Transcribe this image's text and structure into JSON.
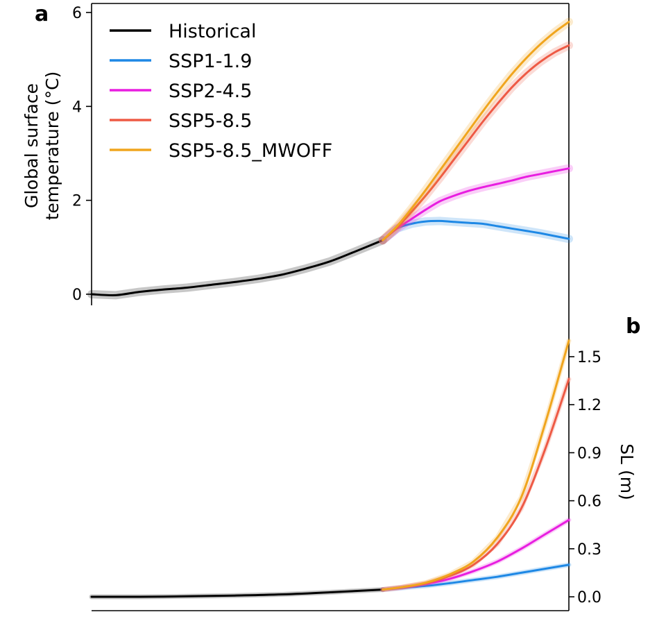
{
  "chart_data": [
    {
      "panel": "a",
      "type": "line",
      "ylabel_line1": "Global surface",
      "ylabel_line2": "temperature",
      "ylabel_unit": "(°C)",
      "ylim": [
        -0.25,
        6.15
      ],
      "yticks": [
        "0",
        "2",
        "4",
        "6"
      ],
      "ytick_values": [
        0,
        2,
        4,
        6
      ],
      "xaxis": "unlabeled time axis",
      "xlim": [
        0,
        100
      ],
      "grid": false,
      "legend_position": "top-left",
      "series": [
        {
          "name": "Historical",
          "color": "#000000",
          "x": [
            0,
            5,
            10,
            15,
            20,
            25,
            30,
            35,
            40,
            45,
            50,
            55,
            61
          ],
          "y": [
            0,
            -0.02,
            0.05,
            0.1,
            0.14,
            0.2,
            0.26,
            0.33,
            0.42,
            0.55,
            0.7,
            0.9,
            1.15
          ]
        },
        {
          "name": "SSP1-1.9",
          "color": "#1e88e5",
          "x": [
            61,
            64,
            67,
            70,
            73,
            76,
            79,
            82,
            85,
            88,
            91,
            94,
            97,
            100
          ],
          "y": [
            1.15,
            1.4,
            1.5,
            1.55,
            1.56,
            1.54,
            1.52,
            1.5,
            1.45,
            1.4,
            1.35,
            1.3,
            1.24,
            1.18
          ]
        },
        {
          "name": "SSP2-4.5",
          "color": "#e81ee0",
          "x": [
            61,
            64,
            67,
            70,
            73,
            76,
            79,
            82,
            85,
            88,
            91,
            94,
            97,
            100
          ],
          "y": [
            1.15,
            1.4,
            1.6,
            1.8,
            1.98,
            2.1,
            2.2,
            2.28,
            2.35,
            2.42,
            2.5,
            2.56,
            2.62,
            2.68
          ]
        },
        {
          "name": "SSP5-8.5",
          "color": "#ee5a45",
          "x": [
            61,
            64,
            67,
            70,
            73,
            76,
            79,
            82,
            85,
            88,
            91,
            94,
            97,
            100
          ],
          "y": [
            1.15,
            1.42,
            1.75,
            2.1,
            2.48,
            2.88,
            3.28,
            3.68,
            4.05,
            4.4,
            4.7,
            4.95,
            5.15,
            5.3
          ]
        },
        {
          "name": "SSP5-8.5_MWOFF",
          "color": "#f0a51e",
          "x": [
            61,
            64,
            67,
            70,
            73,
            76,
            79,
            82,
            85,
            88,
            91,
            94,
            97,
            100
          ],
          "y": [
            1.15,
            1.45,
            1.82,
            2.22,
            2.64,
            3.06,
            3.48,
            3.9,
            4.3,
            4.68,
            5.02,
            5.32,
            5.58,
            5.8
          ]
        }
      ]
    },
    {
      "panel": "b",
      "type": "line",
      "ylabel": "SL",
      "ylabel_unit": "(m)",
      "ylim": [
        -0.05,
        1.62
      ],
      "yticks": [
        "0.0",
        "0.3",
        "0.6",
        "0.9",
        "1.2",
        "1.5"
      ],
      "ytick_values": [
        0,
        0.3,
        0.6,
        0.9,
        1.2,
        1.5
      ],
      "xaxis": "unlabeled time axis",
      "xlim": [
        0,
        100
      ],
      "grid": false,
      "series": [
        {
          "name": "Historical",
          "color": "#000000",
          "x": [
            0,
            10,
            20,
            30,
            40,
            50,
            61
          ],
          "y": [
            0,
            0,
            0.003,
            0.008,
            0.015,
            0.028,
            0.045
          ]
        },
        {
          "name": "SSP1-1.9",
          "color": "#1e88e5",
          "x": [
            61,
            65,
            70,
            75,
            80,
            85,
            90,
            95,
            100
          ],
          "y": [
            0.045,
            0.055,
            0.068,
            0.085,
            0.105,
            0.125,
            0.15,
            0.175,
            0.2
          ]
        },
        {
          "name": "SSP2-4.5",
          "color": "#e81ee0",
          "x": [
            61,
            65,
            70,
            75,
            80,
            85,
            90,
            95,
            100
          ],
          "y": [
            0.045,
            0.058,
            0.08,
            0.112,
            0.16,
            0.22,
            0.3,
            0.39,
            0.48
          ]
        },
        {
          "name": "SSP5-8.5",
          "color": "#ee5a45",
          "x": [
            61,
            65,
            70,
            75,
            80,
            85,
            90,
            95,
            100
          ],
          "y": [
            0.045,
            0.06,
            0.085,
            0.13,
            0.2,
            0.33,
            0.55,
            0.92,
            1.36
          ]
        },
        {
          "name": "SSP5-8.5_MWOFF",
          "color": "#f0a51e",
          "x": [
            61,
            65,
            70,
            75,
            80,
            85,
            90,
            95,
            100
          ],
          "y": [
            0.045,
            0.06,
            0.088,
            0.14,
            0.22,
            0.37,
            0.62,
            1.08,
            1.6
          ]
        }
      ]
    }
  ]
}
